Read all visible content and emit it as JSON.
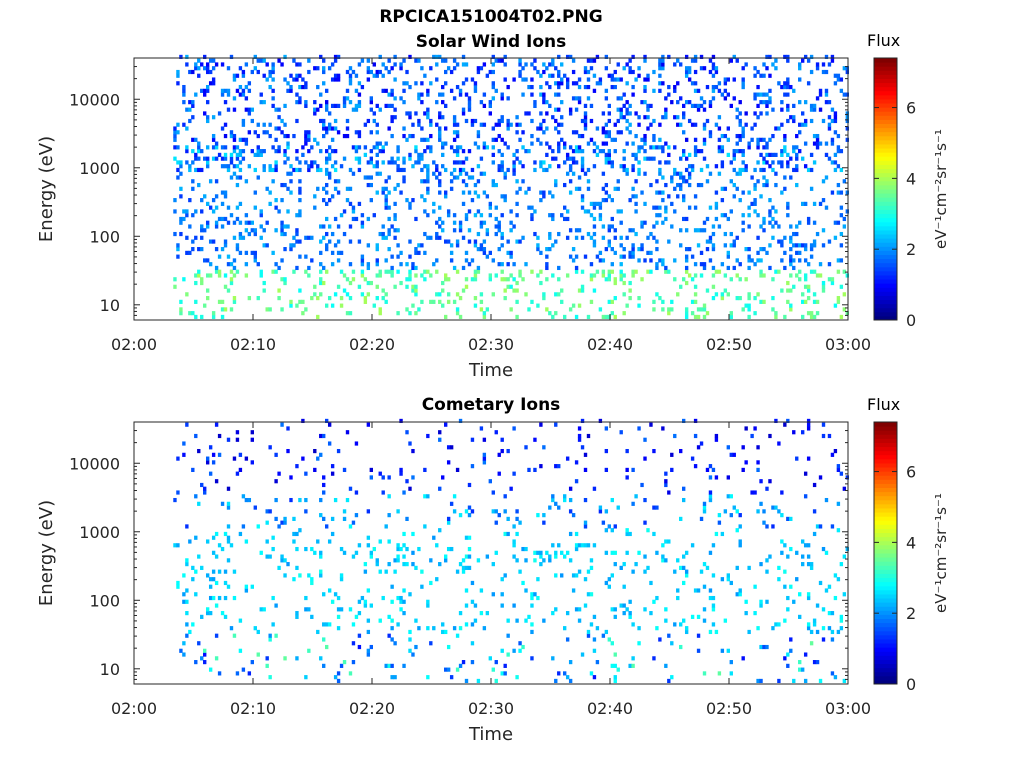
{
  "figure_title": "RPCICA151004T02.PNG",
  "chart_data": [
    {
      "type": "heatmap",
      "title": "Solar Wind Ions",
      "xlabel": "Time",
      "ylabel": "Energy (eV)",
      "x_ticks": [
        "02:00",
        "02:10",
        "02:20",
        "02:30",
        "02:40",
        "02:50",
        "03:00"
      ],
      "x_range": [
        "02:00",
        "03:00"
      ],
      "y_scale": "log",
      "y_ticks": [
        10,
        100,
        1000,
        10000
      ],
      "y_range": [
        6,
        40000
      ],
      "colorbar": {
        "title": "Flux",
        "label": "eV⁻¹cm⁻²sr⁻¹s⁻¹",
        "ticks": [
          0,
          2,
          4,
          6
        ],
        "range": [
          0,
          7.4
        ],
        "colormap": "jet"
      },
      "data_start": "02:03",
      "bursts_minutes": [
        4.7,
        8.0,
        11.3,
        14.4,
        17.7,
        20.6,
        23.9,
        27.1,
        30.4,
        33.5,
        36.2,
        38.9,
        41.8,
        44.5,
        47.3,
        50.1,
        53.0,
        56.2,
        58.8
      ],
      "dominant_flux_range": [
        1,
        3
      ],
      "energy_band_eV": [
        30,
        1000
      ]
    },
    {
      "type": "heatmap",
      "title": "Cometary Ions",
      "xlabel": "Time",
      "ylabel": "Energy (eV)",
      "x_ticks": [
        "02:00",
        "02:10",
        "02:20",
        "02:30",
        "02:40",
        "02:50",
        "03:00"
      ],
      "x_range": [
        "02:00",
        "03:00"
      ],
      "y_scale": "log",
      "y_ticks": [
        10,
        100,
        1000,
        10000
      ],
      "y_range": [
        6,
        40000
      ],
      "colorbar": {
        "title": "Flux",
        "label": "eV⁻¹cm⁻²sr⁻¹s⁻¹",
        "ticks": [
          0,
          2,
          4,
          6
        ],
        "range": [
          0,
          7.4
        ],
        "colormap": "jet"
      },
      "data_start": "02:03",
      "bursts_minutes": [
        4.7,
        8.0,
        11.3,
        14.4,
        17.7,
        20.6,
        23.9,
        27.1,
        30.4,
        33.5,
        36.2,
        38.9,
        41.8,
        44.5,
        47.3,
        50.1,
        53.0,
        56.2,
        58.8
      ],
      "dominant_flux_range": [
        3,
        6
      ],
      "peak_energy_eV": 150,
      "energy_band_eV": [
        20,
        1500
      ]
    }
  ]
}
